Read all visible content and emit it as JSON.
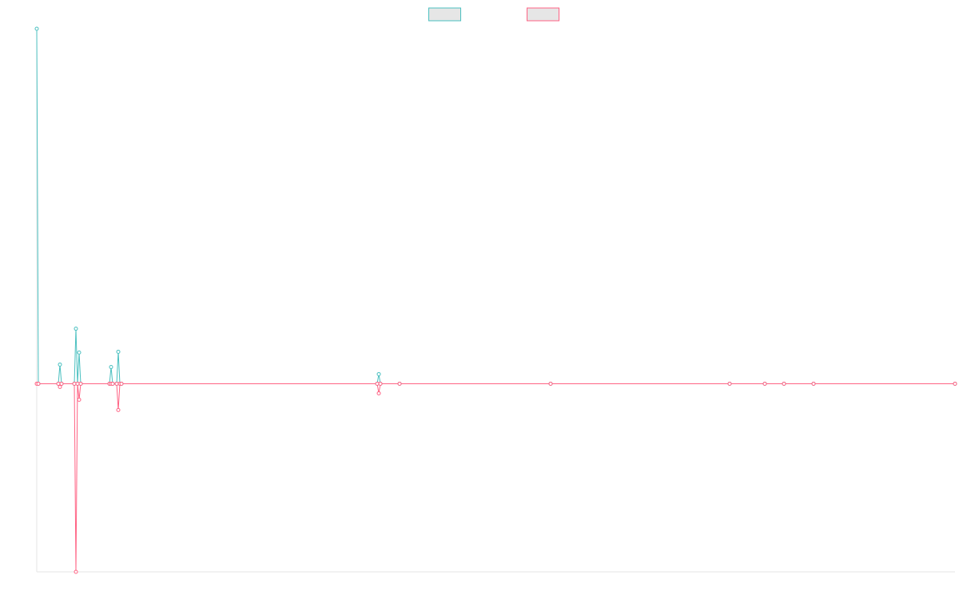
{
  "chart_data": {
    "type": "line",
    "x": [
      0,
      2,
      27,
      29,
      31,
      47,
      49,
      51,
      53,
      55,
      91,
      93,
      95,
      100,
      102,
      104,
      106,
      426,
      428,
      430,
      454,
      643,
      867,
      911,
      935,
      972,
      1149
    ],
    "xlim": [
      0,
      1149
    ],
    "ylim": [
      -53,
      100
    ],
    "legend": "top",
    "series": [
      {
        "color": "#4bc0c0",
        "values": [
          100,
          0,
          0,
          5.4,
          0,
          0,
          15.5,
          0,
          8.8,
          0,
          0,
          4.7,
          0,
          0,
          9,
          0,
          0,
          0,
          2.7,
          0,
          0,
          0,
          0,
          0,
          0,
          0,
          0
        ]
      },
      {
        "color": "#ff6384",
        "values": [
          0,
          0,
          0,
          -0.9,
          0,
          0,
          -53,
          0,
          -4.5,
          0,
          0,
          0,
          0,
          0,
          -7.4,
          0,
          0,
          0,
          -2.7,
          0,
          0,
          0,
          0,
          0,
          0,
          0,
          0
        ]
      }
    ]
  }
}
